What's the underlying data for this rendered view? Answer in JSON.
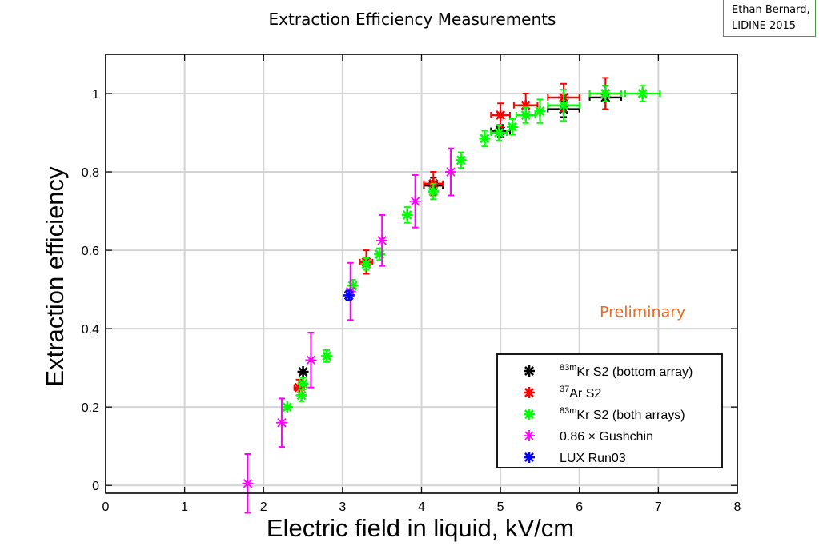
{
  "slide": {
    "title": "Extraction Efficiency Measurements",
    "author_line1": "Ethan Bernard,",
    "author_line2": "LIDINE 2015"
  },
  "chart_data": {
    "type": "scatter",
    "title": "",
    "xlabel": "Electric field in liquid, kV/cm",
    "ylabel": "Extraction efficiency",
    "xlim": [
      0,
      8
    ],
    "ylim": [
      -0.02,
      1.1
    ],
    "xticks": [
      0,
      1,
      2,
      3,
      4,
      5,
      6,
      7,
      8
    ],
    "yticks": [
      0,
      0.2,
      0.4,
      0.6,
      0.8,
      1
    ],
    "ytick_labels": [
      "0",
      "0.2",
      "0.4",
      "0.6",
      "0.8",
      "1"
    ],
    "grid": true,
    "legend_position": "bottom-right",
    "annotation": {
      "text": "Preliminary",
      "color": "#ed6a1e",
      "x": 6.8,
      "y": 0.43
    },
    "series": [
      {
        "name": "83mKr S2 (bottom array)",
        "label_sup": "83m",
        "label_main": "Kr S2 (bottom array)",
        "color": "#000000",
        "marker": "asterisk",
        "points": [
          {
            "x": 2.5,
            "y": 0.29
          },
          {
            "x": 4.15,
            "y": 0.765,
            "xerr": 0.12,
            "yerr": 0.02
          },
          {
            "x": 5.0,
            "y": 0.905,
            "xerr": 0.12,
            "yerr": 0.015
          },
          {
            "x": 5.8,
            "y": 0.96,
            "xerr": 0.2,
            "yerr": 0.02
          },
          {
            "x": 6.33,
            "y": 0.99,
            "xerr": 0.2,
            "yerr": 0.03
          }
        ]
      },
      {
        "name": "37Ar S2",
        "label_sup": "37",
        "label_main": "Ar S2",
        "color": "#ff0000",
        "marker": "asterisk",
        "points": [
          {
            "x": 2.45,
            "y": 0.25,
            "xerr": 0.06,
            "yerr": 0.02
          },
          {
            "x": 3.3,
            "y": 0.57,
            "xerr": 0.08,
            "yerr": 0.03
          },
          {
            "x": 4.15,
            "y": 0.77,
            "xerr": 0.12,
            "yerr": 0.03
          },
          {
            "x": 5.0,
            "y": 0.945,
            "xerr": 0.12,
            "yerr": 0.03
          },
          {
            "x": 5.32,
            "y": 0.97,
            "xerr": 0.15,
            "yerr": 0.03
          },
          {
            "x": 5.8,
            "y": 0.99,
            "xerr": 0.2,
            "yerr": 0.035
          },
          {
            "x": 6.33,
            "y": 1.0,
            "xerr": 0.2,
            "yerr": 0.04
          }
        ]
      },
      {
        "name": "83mKr S2 (both arrays)",
        "label_sup": "83m",
        "label_main": "Kr S2 (both arrays)",
        "color": "#00ff00",
        "marker": "asterisk",
        "points": [
          {
            "x": 2.3,
            "y": 0.2
          },
          {
            "x": 2.48,
            "y": 0.23,
            "yerr": 0.015
          },
          {
            "x": 2.5,
            "y": 0.26,
            "yerr": 0.015
          },
          {
            "x": 2.8,
            "y": 0.33,
            "yerr": 0.015
          },
          {
            "x": 3.13,
            "y": 0.51,
            "yerr": 0.015
          },
          {
            "x": 3.3,
            "y": 0.565,
            "yerr": 0.015
          },
          {
            "x": 3.47,
            "y": 0.59,
            "yerr": 0.015
          },
          {
            "x": 3.82,
            "y": 0.69,
            "yerr": 0.02
          },
          {
            "x": 4.15,
            "y": 0.75,
            "yerr": 0.02
          },
          {
            "x": 4.5,
            "y": 0.83,
            "yerr": 0.02
          },
          {
            "x": 4.8,
            "y": 0.885,
            "yerr": 0.02
          },
          {
            "x": 4.98,
            "y": 0.9,
            "xerr": 0.1,
            "yerr": 0.02
          },
          {
            "x": 5.15,
            "y": 0.915,
            "yerr": 0.02
          },
          {
            "x": 5.32,
            "y": 0.945,
            "xerr": 0.12,
            "yerr": 0.02
          },
          {
            "x": 5.5,
            "y": 0.955,
            "yerr": 0.03
          },
          {
            "x": 5.8,
            "y": 0.97,
            "xerr": 0.2,
            "yerr": 0.04
          },
          {
            "x": 6.33,
            "y": 1.0,
            "xerr": 0.2,
            "yerr": 0.02
          },
          {
            "x": 6.8,
            "y": 1.0,
            "xerr": 0.22,
            "yerr": 0.02
          }
        ]
      },
      {
        "name": "0.86 × Gushchin",
        "label_sup": "",
        "label_main": "0.86 × Gushchin",
        "color": "#ff00ff",
        "marker": "star",
        "points": [
          {
            "x": 1.8,
            "y": 0.005,
            "yerr": 0.075
          },
          {
            "x": 2.23,
            "y": 0.16,
            "yerr": 0.062
          },
          {
            "x": 2.6,
            "y": 0.32,
            "yerr": 0.07
          },
          {
            "x": 3.1,
            "y": 0.495,
            "yerr": 0.073
          },
          {
            "x": 3.5,
            "y": 0.625,
            "yerr": 0.065
          },
          {
            "x": 3.92,
            "y": 0.725,
            "yerr": 0.067
          },
          {
            "x": 4.37,
            "y": 0.8,
            "yerr": 0.06
          }
        ]
      },
      {
        "name": "LUX Run03",
        "label_sup": "",
        "label_main": "LUX Run03",
        "color": "#0000ff",
        "marker": "asterisk",
        "points": [
          {
            "x": 3.08,
            "y": 0.485,
            "yerr": 0.012
          }
        ]
      }
    ]
  }
}
